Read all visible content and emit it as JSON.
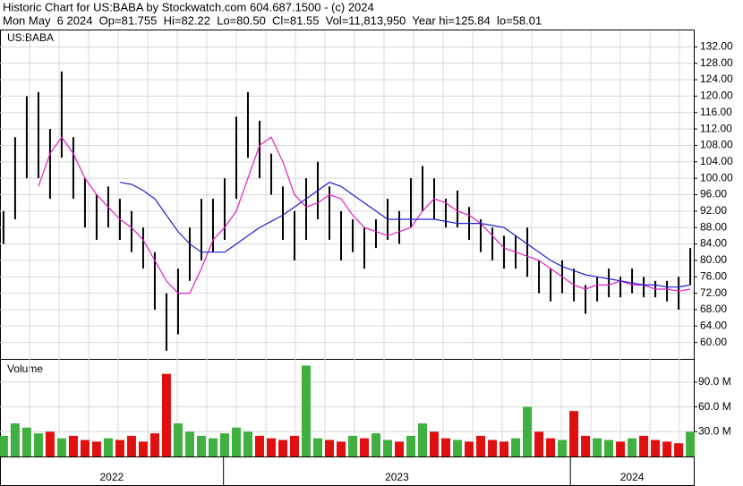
{
  "chart_data": {
    "type": "stock",
    "title": "Historic Chart for US:BABA by Stockwatch.com 604.687.1500 - (c) 2024",
    "subtitle": "Mon May  6 2024  Op=81.755  Hi=82.22  Lo=80.50  Cl=81.55  Vol=11,813,950  Year hi=125.84  lo=58.01",
    "symbol": "US:BABA",
    "volume_title": "Volume",
    "xlim": [
      -0.3,
      59.3
    ],
    "periods": [
      {
        "label": "2022",
        "start": -0.3,
        "end": 18.9
      },
      {
        "label": "2023",
        "start": 18.9,
        "end": 48.7
      },
      {
        "label": "2024",
        "start": 48.7,
        "end": 59.3
      }
    ],
    "ylim": [
      56,
      136
    ],
    "yticks": [
      {
        "value": 60,
        "label": "60.00"
      },
      {
        "value": 64,
        "label": "64.00"
      },
      {
        "value": 68,
        "label": "68.00"
      },
      {
        "value": 72,
        "label": "72.00"
      },
      {
        "value": 76,
        "label": "76.00"
      },
      {
        "value": 80,
        "label": "80.00"
      },
      {
        "value": 84,
        "label": "84.00"
      },
      {
        "value": 88,
        "label": "88.00"
      },
      {
        "value": 92,
        "label": "92.00"
      },
      {
        "value": 96,
        "label": "96.00"
      },
      {
        "value": 100,
        "label": "100.00"
      },
      {
        "value": 104,
        "label": "104.00"
      },
      {
        "value": 108,
        "label": "108.00"
      },
      {
        "value": 112,
        "label": "112.00"
      },
      {
        "value": 116,
        "label": "116.00"
      },
      {
        "value": 120,
        "label": "120.00"
      },
      {
        "value": 124,
        "label": "124.00"
      },
      {
        "value": 128,
        "label": "128.00"
      },
      {
        "value": 132,
        "label": "132.00"
      }
    ],
    "high": [
      92,
      110,
      120,
      121,
      112,
      126,
      110,
      100,
      96,
      98,
      95,
      92,
      88,
      82,
      72,
      78,
      88,
      95,
      95,
      100,
      115,
      121,
      114,
      106,
      98,
      92,
      100,
      104,
      98,
      92,
      90,
      88,
      90,
      95,
      92,
      100,
      103,
      100,
      95,
      97,
      93,
      90,
      88,
      86,
      86,
      88,
      80,
      78,
      80,
      78,
      74,
      76,
      78,
      76,
      78,
      76,
      75,
      75,
      76,
      83
    ],
    "low": [
      84,
      90,
      100,
      100,
      95,
      105,
      95,
      88,
      85,
      88,
      85,
      82,
      78,
      68,
      58,
      62,
      75,
      80,
      82,
      85,
      95,
      105,
      100,
      96,
      85,
      80,
      85,
      90,
      85,
      80,
      82,
      78,
      83,
      85,
      84,
      88,
      92,
      90,
      88,
      88,
      85,
      82,
      80,
      78,
      78,
      76,
      72,
      70,
      72,
      70,
      67,
      70,
      71,
      71,
      72,
      71,
      71,
      70,
      68,
      74
    ],
    "bar_color": "#000000",
    "ma_series": [
      {
        "color": "#e020c0",
        "values": [
          null,
          null,
          null,
          98,
          106,
          110,
          106,
          100,
          96,
          93,
          90,
          88,
          85,
          80,
          75,
          72,
          72,
          78,
          85,
          88,
          92,
          100,
          108,
          110,
          104,
          96,
          93,
          94,
          96,
          95,
          91,
          88,
          87,
          86,
          87,
          88,
          92,
          95,
          94,
          92,
          91,
          89,
          86,
          83,
          82,
          81,
          80,
          78,
          76,
          74,
          73,
          74,
          74,
          75,
          74,
          74,
          73,
          73,
          72.5,
          73
        ]
      },
      {
        "color": "#2020d0",
        "values": [
          null,
          null,
          null,
          null,
          null,
          null,
          null,
          null,
          null,
          null,
          99,
          98.5,
          97,
          95,
          91,
          87,
          84,
          82,
          82,
          82,
          84,
          86,
          88,
          89.5,
          91,
          93,
          95,
          97,
          99,
          98,
          96,
          94,
          92,
          90,
          90,
          90,
          90,
          90,
          89.5,
          89,
          89,
          89,
          88.5,
          88,
          86,
          84,
          82,
          80,
          78.5,
          77.5,
          76.5,
          76,
          75.5,
          75,
          74.5,
          74,
          74,
          73.5,
          73.5,
          74
        ]
      }
    ],
    "volume": [
      25,
      40,
      35,
      28,
      30,
      22,
      25,
      20,
      18,
      22,
      20,
      25,
      18,
      28,
      100,
      40,
      30,
      25,
      22,
      28,
      35,
      30,
      25,
      22,
      20,
      25,
      110,
      22,
      20,
      18,
      25,
      22,
      28,
      20,
      18,
      25,
      40,
      30,
      22,
      20,
      18,
      25,
      20,
      18,
      22,
      60,
      30,
      22,
      20,
      55,
      25,
      22,
      20,
      18,
      22,
      25,
      20,
      18,
      16,
      30
    ],
    "volume_colors": {
      "up": "#40b040",
      "down": "#e01010"
    },
    "vlim": [
      0,
      117
    ],
    "vticks": [
      {
        "value": 30,
        "label": "30.0 M"
      },
      {
        "value": 60,
        "label": "60.0 M"
      },
      {
        "value": 90,
        "label": "90.0 M"
      }
    ],
    "grid": true
  }
}
